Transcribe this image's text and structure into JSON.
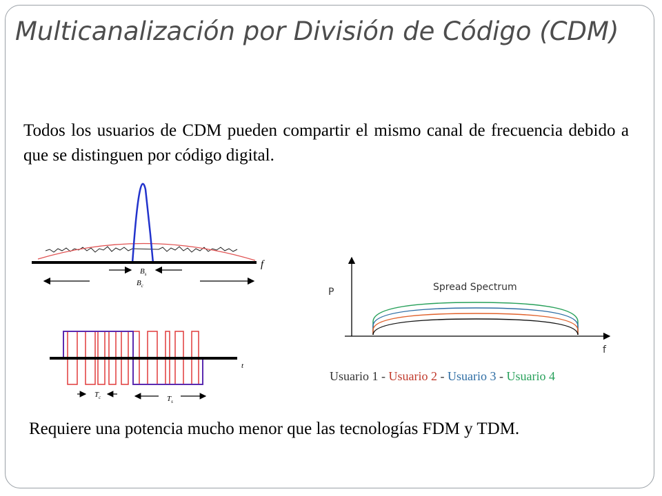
{
  "slide": {
    "title": "Multicanalización por División de Código (CDM)",
    "intro": "Todos los usuarios de CDM pueden compartir el mismo canal de frecuencia debido a que se distinguen por código digital.",
    "outro": "Requiere una potencia mucho menor que las tecnologías FDM y TDM."
  },
  "spectrum_figure": {
    "axis_label": "f",
    "bs_label": "B",
    "bs_sub": "s",
    "bc_label": "B",
    "bc_sub": "c"
  },
  "time_figure": {
    "axis_label": "t",
    "tc_label": "T",
    "tc_sub": "c",
    "ts_label": "T",
    "ts_sub": "s"
  },
  "spread_figure": {
    "title": "Spread Spectrum",
    "y_label": "P",
    "x_label": "f"
  },
  "legend": {
    "users": [
      {
        "label": "Usuario 1",
        "color": "#333333"
      },
      {
        "label": "Usuario 2",
        "color": "#c0392b"
      },
      {
        "label": "Usuario 3",
        "color": "#2e6da4"
      },
      {
        "label": "Usuario 4",
        "color": "#27a05a"
      }
    ],
    "separator": " - "
  }
}
